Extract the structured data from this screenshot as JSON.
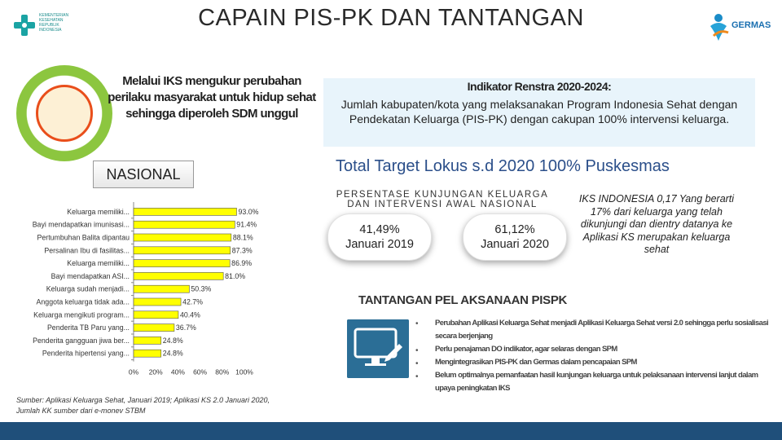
{
  "title": "CAPAIN PIS-PK DAN TANTANGAN",
  "kemenkes_logo_text": "KEMENTERIAN KESEHATAN REPUBLIK INDONESIA",
  "germas_logo_text": "GERMAS",
  "ks_statement": "Melalui IKS mengukur perubahan perilaku masyarakat untuk hidup sehat sehingga diperoleh SDM unggul",
  "nasional_label": "NASIONAL",
  "indikator": {
    "title": "Indikator Renstra 2020-2024:",
    "body": "Jumlah kabupaten/kota yang melaksanakan Program Indonesia Sehat dengan Pendekatan Keluarga (PIS-PK) dengan cakupan 100% intervensi keluarga."
  },
  "total_target": "Total Target Lokus s.d 2020 100%  Puskesmas",
  "persentase_title": "PERSENTASE KUNJUNGAN KELUARGA DAN INTERVENSI AWAL NASIONAL",
  "bubbles": [
    {
      "value": "41,49%",
      "period": "Januari 2019"
    },
    {
      "value": "61,12%",
      "period": "Januari 2020"
    }
  ],
  "iks_note": "IKS INDONESIA   0,17 Yang berarti 17% dari keluarga  yang telah dikunjungi dan  dientry datanya ke Aplikasi KS merupakan keluarga sehat",
  "tantangan": {
    "title": "TANTANGAN PEL AKSANAAN  PISPK",
    "bullet": "•",
    "items": [
      "Perubahan Aplikasi Keluarga Sehat menjadi Aplikasi Keluarga Sehat versi 2.0 sehingga perlu sosialisasi secara berjenjang",
      "Perlu penajaman DO indikator, agar selaras dengan SPM",
      "Mengintegrasikan PIS-PK dan Germas dalam pencapaian SPM",
      "Belum optimalnya pemanfaatan hasil kunjungan keluarga untuk pelaksanaan intervensi lanjut dalam upaya peningkatan IKS"
    ]
  },
  "source": "Sumber: Aplikasi Keluarga Sehat, Januari 2019; Aplikasi KS 2.0 Januari 2020, Jumlah KK sumber dari e-monev STBM",
  "colors": {
    "bar_fill": "#ffff00",
    "bar_stroke": "#555555",
    "title_blue": "#2b4f8a",
    "footer": "#1f4f7a",
    "monitor": "#2b6e96"
  },
  "icons": {
    "monitor": "monitor-edit-icon",
    "family": "family-circle-illustration",
    "kemenkes": "kemenkes-logo",
    "germas": "germas-logo"
  },
  "chart_data": {
    "type": "bar",
    "orientation": "horizontal",
    "categories": [
      "Keluarga memiliki...",
      "Bayi mendapatkan imunisasi...",
      "Pertumbuhan Balita dipantau",
      "Persalinan Ibu di fasilitas...",
      "Keluarga memiliki...",
      "Bayi mendapatkan ASI...",
      "Keluarga sudah menjadi...",
      "Anggota keluarga tidak ada...",
      "Keluarga mengikuti program...",
      "Penderita TB Paru yang...",
      "Penderita gangguan jiwa ber...",
      "Penderita hipertensi yang..."
    ],
    "values": [
      93.0,
      91.4,
      88.1,
      87.3,
      86.9,
      81.0,
      50.3,
      42.7,
      40.4,
      36.7,
      24.8,
      24.8
    ],
    "value_labels": [
      "93.0%",
      "91.4%",
      "88.1%",
      "87.3%",
      "86.9%",
      "81.0%",
      "50.3%",
      "42.7%",
      "40.4%",
      "36.7%",
      "24.8%",
      "24.8%"
    ],
    "x_ticks": [
      "0%",
      "20%",
      "40%",
      "60%",
      "80%",
      "100%"
    ],
    "xlim": [
      0,
      100
    ],
    "grid": false,
    "legend": false
  }
}
